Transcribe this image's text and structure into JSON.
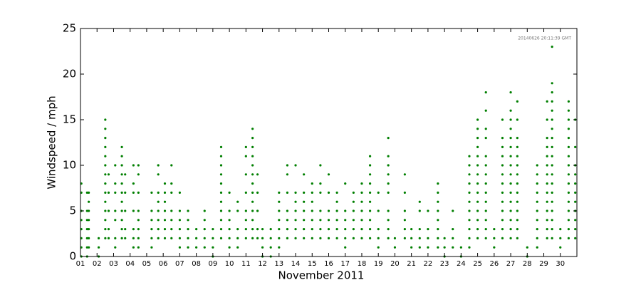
{
  "chart_data": {
    "type": "scatter",
    "xlabel": "November 2011",
    "ylabel": "Windspeed / mph",
    "annotation": "20140626 20:11:39 GMT",
    "color": "#007f00",
    "xlim": [
      1,
      31
    ],
    "ylim": [
      0,
      25
    ],
    "xticks": [
      {
        "value": 1,
        "label": "01"
      },
      {
        "value": 2,
        "label": "02"
      },
      {
        "value": 3,
        "label": "03"
      },
      {
        "value": 4,
        "label": "04"
      },
      {
        "value": 5,
        "label": "05"
      },
      {
        "value": 6,
        "label": "06"
      },
      {
        "value": 7,
        "label": "07"
      },
      {
        "value": 8,
        "label": "08"
      },
      {
        "value": 9,
        "label": "09"
      },
      10,
      11,
      12,
      13,
      14,
      15,
      16,
      17,
      18,
      19,
      20,
      21,
      22,
      23,
      24,
      25,
      26,
      27,
      28,
      29,
      30
    ],
    "yticks": [
      0,
      5,
      10,
      15,
      20,
      25
    ],
    "x": [
      1.05,
      1.05,
      1.05,
      1.05,
      1.05,
      1.05,
      1.05,
      1.05,
      1.4,
      1.4,
      1.4,
      1.4,
      1.4,
      1.4,
      1.4,
      1.5,
      1.5,
      1.5,
      1.5,
      1.5,
      1.5,
      1.5,
      2.1,
      2.1,
      2.1,
      2.5,
      2.5,
      2.5,
      2.5,
      2.5,
      2.5,
      2.5,
      2.5,
      2.5,
      2.5,
      2.5,
      2.5,
      2.5,
      2.5,
      2.7,
      2.7,
      2.7,
      2.7,
      2.7,
      3.1,
      3.1,
      3.1,
      3.1,
      3.1,
      3.1,
      3.1,
      3.5,
      3.5,
      3.5,
      3.5,
      3.5,
      3.5,
      3.5,
      3.5,
      3.5,
      3.5,
      3.5,
      3.7,
      3.7,
      3.7,
      3.7,
      3.7,
      4.2,
      4.2,
      4.2,
      4.2,
      4.2,
      4.2,
      4.2,
      4.5,
      4.5,
      4.5,
      4.5,
      4.5,
      4.5,
      4.5,
      4.5,
      5.3,
      5.3,
      5.3,
      5.3,
      5.3,
      5.3,
      5.7,
      5.7,
      5.7,
      5.7,
      5.7,
      5.7,
      5.7,
      5.7,
      6.1,
      6.1,
      6.1,
      6.1,
      6.1,
      6.1,
      6.1,
      6.5,
      6.5,
      6.5,
      6.5,
      6.5,
      6.5,
      6.5,
      7.0,
      7.0,
      7.0,
      7.0,
      7.0,
      7.0,
      7.5,
      7.5,
      7.5,
      7.5,
      7.5,
      8.0,
      8.0,
      8.0,
      8.5,
      8.5,
      8.5,
      8.5,
      8.5,
      9.0,
      9.0,
      9.0,
      9.0,
      9.5,
      9.5,
      9.5,
      9.5,
      9.5,
      9.5,
      9.5,
      9.5,
      9.5,
      9.5,
      9.5,
      10.0,
      10.0,
      10.0,
      10.0,
      10.0,
      10.0,
      10.5,
      10.5,
      10.5,
      10.5,
      10.5,
      11.0,
      11.0,
      11.0,
      11.0,
      11.0,
      11.0,
      11.0,
      11.0,
      11.4,
      11.4,
      11.4,
      11.4,
      11.4,
      11.4,
      11.4,
      11.4,
      11.4,
      11.4,
      11.4,
      11.4,
      11.4,
      11.7,
      11.7,
      11.7,
      11.7,
      11.7,
      12.0,
      12.0,
      12.0,
      12.0,
      12.5,
      12.5,
      12.5,
      12.5,
      13.0,
      13.0,
      13.0,
      13.0,
      13.0,
      13.0,
      13.0,
      13.5,
      13.5,
      13.5,
      13.5,
      13.5,
      13.5,
      13.5,
      14.0,
      14.0,
      14.0,
      14.0,
      14.0,
      14.0,
      14.0,
      14.5,
      14.5,
      14.5,
      14.5,
      14.5,
      14.5,
      14.5,
      15.0,
      15.0,
      15.0,
      15.0,
      15.0,
      15.0,
      15.0,
      15.5,
      15.5,
      15.5,
      15.5,
      15.5,
      15.5,
      15.5,
      16.0,
      16.0,
      16.0,
      16.0,
      16.0,
      16.0,
      16.5,
      16.5,
      16.5,
      16.5,
      16.5,
      16.5,
      17.0,
      17.0,
      17.0,
      17.0,
      17.0,
      17.0,
      17.5,
      17.5,
      17.5,
      17.5,
      17.5,
      17.5,
      18.0,
      18.0,
      18.0,
      18.0,
      18.0,
      18.0,
      18.0,
      18.5,
      18.5,
      18.5,
      18.5,
      18.5,
      18.5,
      18.5,
      18.5,
      18.5,
      18.5,
      19.0,
      19.0,
      19.0,
      19.0,
      19.0,
      19.6,
      19.6,
      19.6,
      19.6,
      19.6,
      19.6,
      19.6,
      19.6,
      19.6,
      19.6,
      20.0,
      20.0,
      20.6,
      20.6,
      20.6,
      20.6,
      20.6,
      20.6,
      21.0,
      21.0,
      21.0,
      21.5,
      21.5,
      21.5,
      21.5,
      21.5,
      22.0,
      22.0,
      22.0,
      22.0,
      22.6,
      22.6,
      22.6,
      22.6,
      22.6,
      22.6,
      22.6,
      22.6,
      23.0,
      23.0,
      23.0,
      23.5,
      23.5,
      23.5,
      23.5,
      24.0,
      24.0,
      24.5,
      24.5,
      24.5,
      24.5,
      24.5,
      24.5,
      24.5,
      24.5,
      24.5,
      24.5,
      24.5,
      25.0,
      25.0,
      25.0,
      25.0,
      25.0,
      25.0,
      25.0,
      25.0,
      25.0,
      25.0,
      25.0,
      25.0,
      25.0,
      25.0,
      25.5,
      25.5,
      25.5,
      25.5,
      25.5,
      25.5,
      25.5,
      25.5,
      25.5,
      25.5,
      25.5,
      25.5,
      25.5,
      25.5,
      26.0,
      26.0,
      26.0,
      26.5,
      26.5,
      26.5,
      26.5,
      26.5,
      26.5,
      26.5,
      26.5,
      26.5,
      26.5,
      26.5,
      26.5,
      26.5,
      27.0,
      27.0,
      27.0,
      27.0,
      27.0,
      27.0,
      27.0,
      27.0,
      27.0,
      27.0,
      27.0,
      27.0,
      27.0,
      27.0,
      27.0,
      27.0,
      27.4,
      27.4,
      27.4,
      27.4,
      27.4,
      27.4,
      27.4,
      27.4,
      27.4,
      27.4,
      27.4,
      27.4,
      27.4,
      27.4,
      28.0,
      28.0,
      28.6,
      28.6,
      28.6,
      28.6,
      28.6,
      28.6,
      28.6,
      28.6,
      28.6,
      28.6,
      29.2,
      29.2,
      29.2,
      29.2,
      29.2,
      29.2,
      29.2,
      29.2,
      29.2,
      29.2,
      29.2,
      29.2,
      29.2,
      29.2,
      29.5,
      29.5,
      29.5,
      29.5,
      29.5,
      29.5,
      29.5,
      29.5,
      29.5,
      29.5,
      29.5,
      29.5,
      29.5,
      29.5,
      29.5,
      29.5,
      29.5,
      29.5,
      29.5,
      30.0,
      30.0,
      30.0,
      30.5,
      30.5,
      30.5,
      30.5,
      30.5,
      30.5,
      30.5,
      30.5,
      30.5,
      30.5,
      30.5,
      30.5,
      30.5,
      30.5,
      30.5,
      30.5,
      30.9,
      30.9,
      30.9,
      30.9,
      30.9,
      30.9,
      30.9,
      30.9,
      30.9,
      30.9,
      30.9
    ],
    "values": [
      0,
      1,
      2,
      3,
      4,
      5,
      7,
      8,
      0,
      1,
      2,
      3,
      4,
      5,
      7,
      1,
      2,
      3,
      4,
      5,
      6,
      7,
      0,
      1,
      2,
      2,
      3,
      4,
      5,
      6,
      7,
      8,
      9,
      10,
      11,
      12,
      13,
      14,
      15,
      2,
      3,
      5,
      7,
      9,
      1,
      2,
      4,
      5,
      7,
      8,
      10,
      2,
      3,
      4,
      5,
      6,
      7,
      8,
      9,
      10,
      11,
      12,
      2,
      3,
      5,
      7,
      9,
      1,
      2,
      3,
      5,
      7,
      8,
      10,
      1,
      2,
      3,
      4,
      5,
      7,
      9,
      10,
      1,
      2,
      3,
      4,
      5,
      7,
      2,
      3,
      4,
      5,
      6,
      7,
      9,
      10,
      2,
      3,
      4,
      5,
      6,
      7,
      8,
      2,
      3,
      4,
      5,
      7,
      8,
      10,
      1,
      2,
      3,
      4,
      5,
      7,
      1,
      2,
      3,
      4,
      5,
      1,
      2,
      3,
      1,
      2,
      3,
      4,
      5,
      0,
      1,
      2,
      3,
      2,
      3,
      4,
      5,
      6,
      7,
      8,
      9,
      10,
      11,
      12,
      1,
      2,
      3,
      4,
      5,
      7,
      1,
      2,
      3,
      5,
      6,
      2,
      3,
      4,
      5,
      7,
      9,
      11,
      12,
      2,
      3,
      4,
      5,
      6,
      7,
      8,
      9,
      10,
      11,
      12,
      13,
      14,
      2,
      3,
      5,
      7,
      9,
      0,
      1,
      2,
      3,
      0,
      1,
      2,
      3,
      1,
      2,
      3,
      4,
      5,
      6,
      7,
      2,
      3,
      4,
      5,
      7,
      9,
      10,
      2,
      3,
      4,
      5,
      6,
      7,
      10,
      2,
      3,
      4,
      5,
      6,
      7,
      9,
      2,
      3,
      4,
      5,
      6,
      7,
      8,
      2,
      3,
      4,
      5,
      7,
      8,
      10,
      2,
      3,
      4,
      5,
      7,
      9,
      2,
      3,
      4,
      5,
      6,
      7,
      1,
      2,
      3,
      4,
      5,
      8,
      2,
      3,
      4,
      5,
      6,
      7,
      2,
      3,
      4,
      5,
      6,
      7,
      8,
      2,
      3,
      4,
      5,
      6,
      7,
      8,
      9,
      10,
      11,
      1,
      2,
      3,
      5,
      7,
      2,
      3,
      4,
      5,
      7,
      8,
      9,
      10,
      11,
      13,
      1,
      2,
      2,
      3,
      4,
      5,
      7,
      9,
      1,
      2,
      3,
      1,
      2,
      3,
      5,
      6,
      1,
      2,
      3,
      5,
      1,
      2,
      3,
      4,
      5,
      6,
      7,
      8,
      0,
      1,
      2,
      1,
      2,
      3,
      5,
      0,
      1,
      1,
      2,
      3,
      4,
      5,
      6,
      7,
      8,
      9,
      10,
      11,
      2,
      3,
      4,
      5,
      6,
      7,
      8,
      9,
      10,
      11,
      12,
      13,
      14,
      15,
      2,
      3,
      4,
      5,
      6,
      7,
      8,
      9,
      10,
      11,
      13,
      14,
      16,
      18,
      1,
      2,
      3,
      2,
      3,
      4,
      5,
      6,
      7,
      8,
      9,
      10,
      11,
      12,
      13,
      15,
      2,
      3,
      4,
      5,
      6,
      7,
      8,
      9,
      10,
      11,
      12,
      13,
      14,
      15,
      16,
      18,
      2,
      3,
      4,
      5,
      6,
      7,
      8,
      9,
      10,
      11,
      12,
      13,
      15,
      17,
      0,
      1,
      1,
      2,
      3,
      4,
      5,
      6,
      7,
      8,
      9,
      10,
      2,
      3,
      4,
      5,
      6,
      7,
      8,
      9,
      10,
      11,
      12,
      13,
      15,
      17,
      2,
      3,
      4,
      5,
      6,
      7,
      8,
      9,
      10,
      11,
      12,
      13,
      14,
      15,
      16,
      17,
      18,
      19,
      23,
      1,
      2,
      3,
      2,
      3,
      4,
      5,
      6,
      7,
      8,
      9,
      10,
      11,
      12,
      13,
      14,
      15,
      16,
      17,
      2,
      3,
      4,
      5,
      6,
      7,
      8,
      9,
      10,
      12,
      15
    ]
  }
}
